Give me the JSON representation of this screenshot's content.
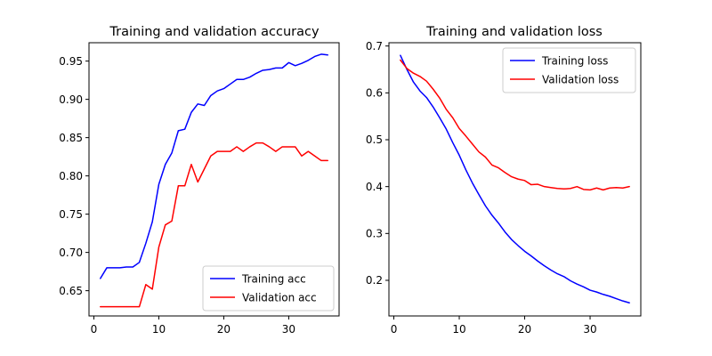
{
  "chart_data": [
    {
      "type": "line",
      "title": "Training and validation accuracy",
      "xlim": [
        -0.75,
        37.75
      ],
      "ylim": [
        0.617,
        0.974
      ],
      "xticks": [
        0,
        10,
        20,
        30
      ],
      "yticks": [
        0.65,
        0.7,
        0.75,
        0.8,
        0.85,
        0.9,
        0.95
      ],
      "ytick_format": 2,
      "legend_position": "lower-right",
      "grid": false,
      "x": [
        1,
        2,
        3,
        4,
        5,
        6,
        7,
        8,
        9,
        10,
        11,
        12,
        13,
        14,
        15,
        16,
        17,
        18,
        19,
        20,
        21,
        22,
        23,
        24,
        25,
        26,
        27,
        28,
        29,
        30,
        31,
        32,
        33,
        34,
        35,
        36
      ],
      "series": [
        {
          "name": "Training acc",
          "color": "#0000ff",
          "values": [
            0.666,
            0.68,
            0.68,
            0.68,
            0.681,
            0.681,
            0.687,
            0.712,
            0.74,
            0.789,
            0.815,
            0.83,
            0.859,
            0.861,
            0.883,
            0.894,
            0.892,
            0.905,
            0.911,
            0.914,
            0.92,
            0.926,
            0.926,
            0.929,
            0.934,
            0.938,
            0.939,
            0.941,
            0.941,
            0.948,
            0.944,
            0.947,
            0.951,
            0.956,
            0.959,
            0.958
          ]
        },
        {
          "name": "Validation acc",
          "color": "#ff0000",
          "values": [
            0.629,
            0.629,
            0.629,
            0.629,
            0.629,
            0.629,
            0.629,
            0.658,
            0.652,
            0.707,
            0.736,
            0.741,
            0.787,
            0.787,
            0.815,
            0.792,
            0.809,
            0.826,
            0.832,
            0.832,
            0.832,
            0.838,
            0.832,
            0.838,
            0.843,
            0.843,
            0.838,
            0.832,
            0.838,
            0.838,
            0.838,
            0.826,
            0.832,
            0.826,
            0.82,
            0.82
          ]
        }
      ]
    },
    {
      "type": "line",
      "title": "Training and validation loss",
      "xlim": [
        -0.75,
        37.75
      ],
      "ylim": [
        0.124,
        0.707
      ],
      "xticks": [
        0,
        10,
        20,
        30
      ],
      "yticks": [
        0.2,
        0.3,
        0.4,
        0.5,
        0.6,
        0.7
      ],
      "ytick_format": 1,
      "legend_position": "upper-right",
      "grid": false,
      "x": [
        1,
        2,
        3,
        4,
        5,
        6,
        7,
        8,
        9,
        10,
        11,
        12,
        13,
        14,
        15,
        16,
        17,
        18,
        19,
        20,
        21,
        22,
        23,
        24,
        25,
        26,
        27,
        28,
        29,
        30,
        31,
        32,
        33,
        34,
        35,
        36
      ],
      "series": [
        {
          "name": "Training loss",
          "color": "#0000ff",
          "values": [
            0.68,
            0.65,
            0.623,
            0.604,
            0.59,
            0.57,
            0.547,
            0.523,
            0.494,
            0.467,
            0.436,
            0.408,
            0.383,
            0.359,
            0.339,
            0.322,
            0.303,
            0.287,
            0.274,
            0.262,
            0.252,
            0.241,
            0.231,
            0.222,
            0.214,
            0.208,
            0.199,
            0.192,
            0.186,
            0.179,
            0.175,
            0.17,
            0.166,
            0.161,
            0.156,
            0.152
          ]
        },
        {
          "name": "Validation loss",
          "color": "#ff0000",
          "values": [
            0.67,
            0.652,
            0.642,
            0.635,
            0.625,
            0.608,
            0.589,
            0.565,
            0.547,
            0.524,
            0.508,
            0.491,
            0.474,
            0.463,
            0.446,
            0.44,
            0.43,
            0.421,
            0.416,
            0.413,
            0.404,
            0.405,
            0.4,
            0.398,
            0.396,
            0.395,
            0.396,
            0.4,
            0.394,
            0.393,
            0.397,
            0.393,
            0.397,
            0.398,
            0.397,
            0.4
          ]
        }
      ]
    }
  ]
}
